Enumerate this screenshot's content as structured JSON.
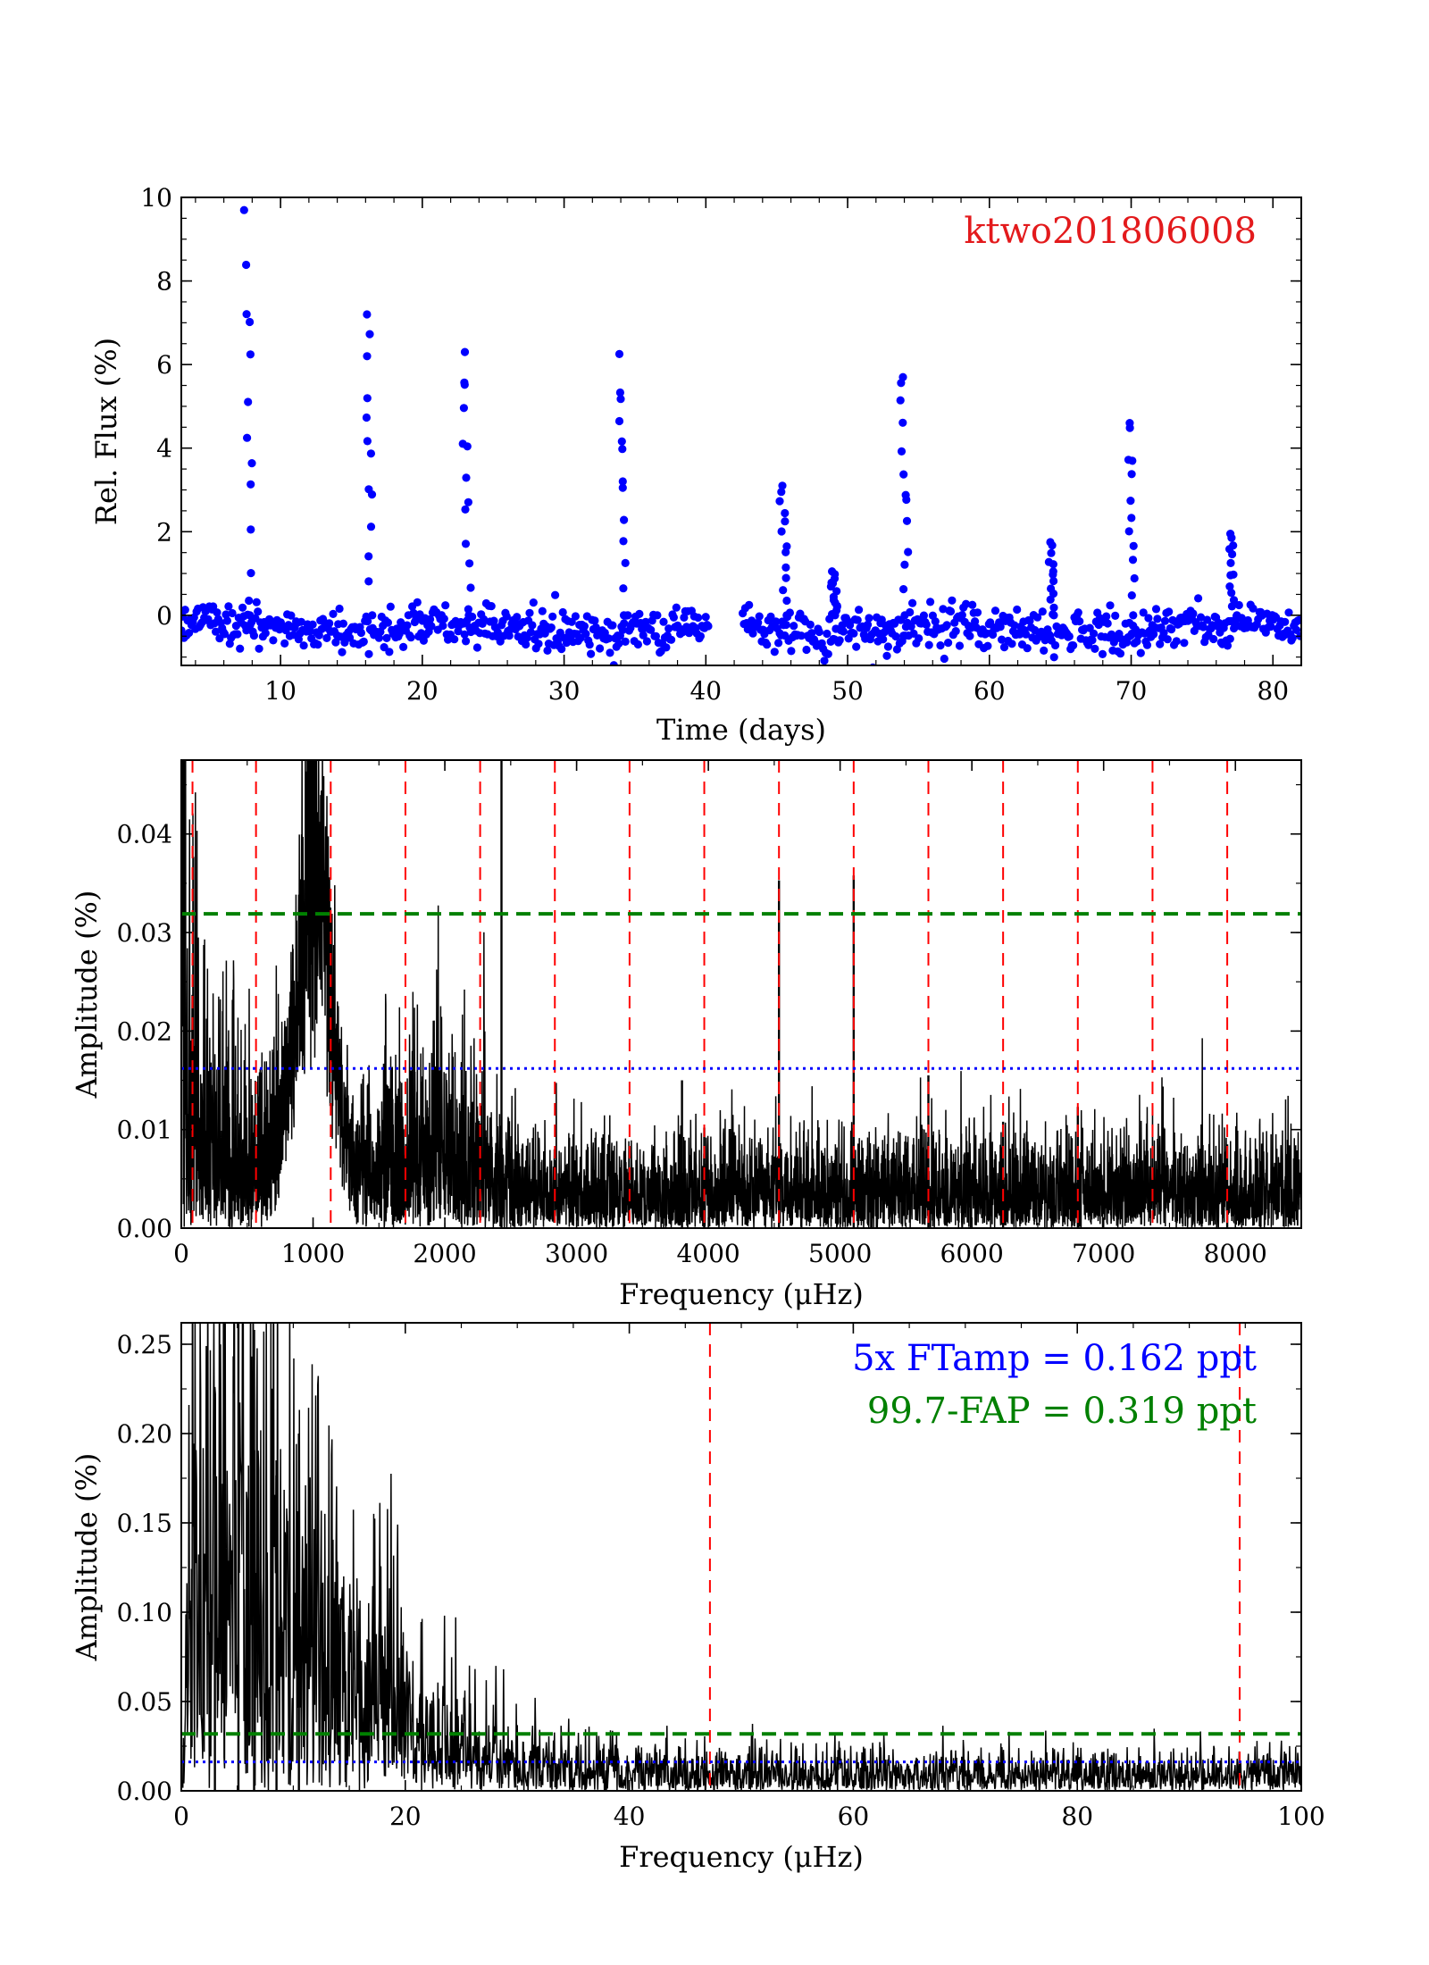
{
  "chart_data": [
    {
      "type": "scatter",
      "title": "",
      "annotation": "ktwo201806008",
      "xlabel": "Time (days)",
      "ylabel": "Rel. Flux (%)",
      "xlim": [
        3,
        82
      ],
      "ylim": [
        -1.2,
        10
      ],
      "xticks": [
        10,
        20,
        30,
        40,
        50,
        60,
        70,
        80
      ],
      "yticks": [
        0,
        2,
        4,
        6,
        8,
        10
      ],
      "colors": {
        "points": "#0000ff",
        "annotation": "#e31a1c"
      },
      "gap": [
        40.2,
        42.6
      ],
      "baseline_scatter": 0.25,
      "outbursts": [
        {
          "t": 7.6,
          "peak": 10.1
        },
        {
          "t": 16.1,
          "peak": 7.2
        },
        {
          "t": 23.0,
          "peak": 6.3
        },
        {
          "t": 33.9,
          "peak": 6.25
        },
        {
          "t": 45.4,
          "peak": 3.1
        },
        {
          "t": 48.9,
          "peak": 1.05
        },
        {
          "t": 53.9,
          "peak": 5.7
        },
        {
          "t": 64.3,
          "peak": 1.75
        },
        {
          "t": 69.9,
          "peak": 4.6
        },
        {
          "t": 77.0,
          "peak": 1.95
        }
      ]
    },
    {
      "type": "line",
      "title": "",
      "xlabel": "Frequency (μHz)",
      "ylabel": "Amplitude (%)",
      "xlim": [
        0,
        8500
      ],
      "ylim": [
        0,
        0.0475
      ],
      "xticks": [
        0,
        1000,
        2000,
        3000,
        4000,
        5000,
        6000,
        7000,
        8000
      ],
      "yticks": [
        0.0,
        0.01,
        0.02,
        0.03,
        0.04
      ],
      "ytick_labels": [
        "0.00",
        "0.01",
        "0.02",
        "0.03",
        "0.04"
      ],
      "colors": {
        "line": "#000000",
        "threshold_fap": "#008000",
        "threshold_ftamp": "#0000ff",
        "harmonics": "#ff0000"
      },
      "threshold_fap": 0.0319,
      "threshold_ftamp": 0.0162,
      "harmonic_lines": [
        85,
        567,
        1134,
        1701,
        2268,
        2835,
        3402,
        3969,
        4536,
        5103,
        5670,
        6237,
        6804,
        7371,
        7938
      ],
      "peaks": [
        {
          "f": 2430,
          "amp": 0.0475
        },
        {
          "f": 4536,
          "amp": 0.0353
        },
        {
          "f": 5103,
          "amp": 0.0358
        },
        {
          "f": 3800,
          "amp": 0.015
        },
        {
          "f": 3969,
          "amp": 0.0102
        },
        {
          "f": 5670,
          "amp": 0.0155
        },
        {
          "f": 6237,
          "amp": 0.0108
        },
        {
          "f": 6804,
          "amp": 0.0123
        },
        {
          "f": 7938,
          "amp": 0.0085
        }
      ],
      "hump": {
        "center": 1000,
        "width": 170,
        "amp": 0.045
      }
    },
    {
      "type": "line",
      "title": "",
      "xlabel": "Frequency (μHz)",
      "ylabel": "Amplitude (%)",
      "xlim": [
        0,
        100
      ],
      "ylim": [
        0,
        0.262
      ],
      "xticks": [
        0,
        20,
        40,
        60,
        80,
        100
      ],
      "yticks": [
        0.0,
        0.05,
        0.1,
        0.15,
        0.2,
        0.25
      ],
      "ytick_labels": [
        "0.00",
        "0.05",
        "0.10",
        "0.15",
        "0.20",
        "0.25"
      ],
      "colors": {
        "line": "#000000",
        "threshold_fap": "#008000",
        "threshold_ftamp": "#0000ff",
        "harmonics": "#ff0000"
      },
      "threshold_fap": 0.0319,
      "threshold_ftamp": 0.0162,
      "harmonic_lines": [
        47.2,
        94.5
      ],
      "peaks": [
        {
          "f": 5.1,
          "amp": 0.262
        },
        {
          "f": 6.5,
          "amp": 0.258
        },
        {
          "f": 3.0,
          "amp": 0.22
        },
        {
          "f": 10.5,
          "amp": 0.2
        },
        {
          "f": 8.5,
          "amp": 0.185
        }
      ],
      "legend": {
        "ftamp_text": "5x FTamp = 0.162 ppt",
        "fap_text": "99.7-FAP = 0.319 ppt",
        "placement": "top-right"
      }
    }
  ]
}
